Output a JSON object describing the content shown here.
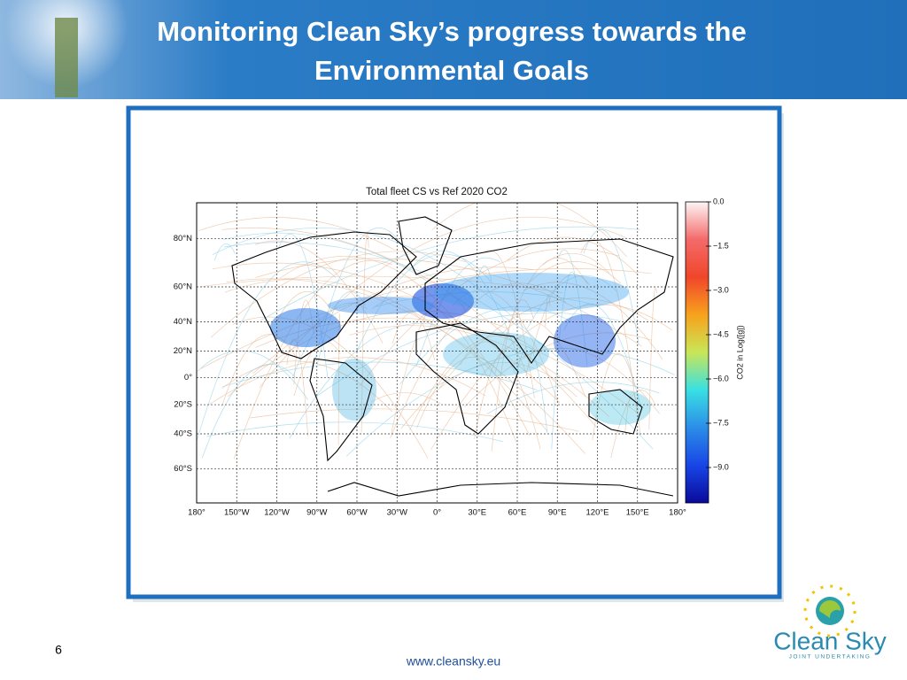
{
  "header": {
    "title_lines": [
      "Monitoring Clean Sky’s progress towards the",
      "Environmental Goals"
    ]
  },
  "chart_data": {
    "type": "map",
    "title": "Total fleet CS vs Ref 2020 CO2",
    "projection": "miller",
    "grid": true,
    "xlim": [
      -180,
      180
    ],
    "xticks": [
      {
        "value": -180,
        "label": "180°"
      },
      {
        "value": -150,
        "label": "150°W"
      },
      {
        "value": -120,
        "label": "120°W"
      },
      {
        "value": -90,
        "label": "90°W"
      },
      {
        "value": -60,
        "label": "60°W"
      },
      {
        "value": -30,
        "label": "30°W"
      },
      {
        "value": 0,
        "label": "0°"
      },
      {
        "value": 30,
        "label": "30°E"
      },
      {
        "value": 60,
        "label": "60°E"
      },
      {
        "value": 90,
        "label": "90°E"
      },
      {
        "value": 120,
        "label": "120°E"
      },
      {
        "value": 150,
        "label": "150°E"
      },
      {
        "value": 180,
        "label": "180°"
      }
    ],
    "ylim": [
      -75,
      90
    ],
    "yticks": [
      {
        "value": 80,
        "label": "80°N"
      },
      {
        "value": 60,
        "label": "60°N"
      },
      {
        "value": 40,
        "label": "40°N"
      },
      {
        "value": 20,
        "label": "20°N"
      },
      {
        "value": 0,
        "label": "0°"
      },
      {
        "value": -20,
        "label": "20°S"
      },
      {
        "value": -40,
        "label": "40°S"
      },
      {
        "value": -60,
        "label": "60°S"
      }
    ],
    "colorbar": {
      "label": "CO2 in Log([g])",
      "lim": [
        -10.2,
        0
      ],
      "ticks": [
        {
          "value": 0,
          "label": "0.0"
        },
        {
          "value": -1.5,
          "label": "−1.5"
        },
        {
          "value": -3,
          "label": "−3.0"
        },
        {
          "value": -4.5,
          "label": "−4.5"
        },
        {
          "value": -6,
          "label": "−6.0"
        },
        {
          "value": -7.5,
          "label": "−7.5"
        },
        {
          "value": -9,
          "label": "−9.0"
        }
      ],
      "colors": [
        "#fdf5f5",
        "#f46a6a",
        "#f0462a",
        "#f7a21c",
        "#c9e657",
        "#38e0e3",
        "#2c8de8",
        "#1746e6",
        "#0a0a9a"
      ]
    }
  },
  "footer": {
    "page": "6",
    "url": "www.cleansky.eu",
    "logo": "Clean Sky",
    "logo_sub": "JOINT UNDERTAKING"
  }
}
